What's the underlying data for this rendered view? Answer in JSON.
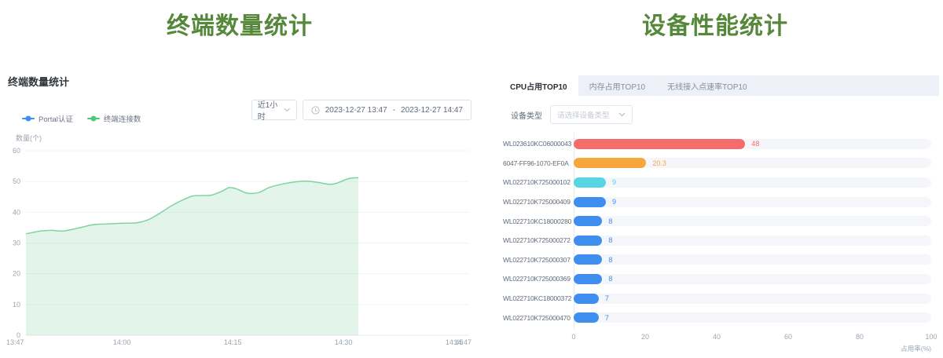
{
  "colors": {
    "title_green": "#55883a",
    "portal_blue": "#3e8ef0",
    "terminal_green": "#7fd39e",
    "bar_red": "#f56c6c",
    "bar_orange": "#f7a63c",
    "bar_cyan": "#55d6e2",
    "bar_blue": "#3e8ef0"
  },
  "left": {
    "big_title": "终端数量统计",
    "panel_title": "终端数量统计",
    "range_select": {
      "value": "近1小时"
    },
    "date_range": {
      "start": "2023-12-27 13:47",
      "separator": "-",
      "end": "2023-12-27 14:47"
    },
    "legend": [
      {
        "label": "Portal认证",
        "color": "#3e8ef0"
      },
      {
        "label": "终端连接数",
        "color": "#4ec977"
      }
    ]
  },
  "right": {
    "big_title": "设备性能统计",
    "tabs": [
      {
        "label": "CPU占用TOP10",
        "active": true
      },
      {
        "label": "内存占用TOP10",
        "active": false
      },
      {
        "label": "无线接入点速率TOP10",
        "active": false
      }
    ],
    "filter": {
      "label": "设备类型",
      "placeholder": "请选择设备类型"
    }
  },
  "chart_data": [
    {
      "type": "area",
      "title": "终端数量统计",
      "ylabel": "数量(个)",
      "ylim": [
        0,
        60
      ],
      "y_ticks": [
        0,
        10,
        20,
        30,
        40,
        50,
        60
      ],
      "x_ticks": [
        "13:47",
        "14:00",
        "14:15",
        "14:30",
        "14:45",
        "14:47"
      ],
      "x_tick_minutes": [
        0,
        13,
        28,
        43,
        58,
        60
      ],
      "x_range_minutes": [
        0,
        60
      ],
      "grid": true,
      "legend_position": "top-left",
      "series": [
        {
          "name": "Portal认证",
          "color": "#3e8ef0",
          "points": []
        },
        {
          "name": "终端连接数",
          "color": "#7fd39e",
          "fill": "rgba(127,211,158,0.22)",
          "points": [
            [
              0,
              33
            ],
            [
              2,
              33.9
            ],
            [
              3.5,
              34.1
            ],
            [
              5,
              33.9
            ],
            [
              7,
              34.8
            ],
            [
              9,
              35.9
            ],
            [
              11,
              36.2
            ],
            [
              13,
              36.4
            ],
            [
              15,
              36.6
            ],
            [
              16.5,
              37.5
            ],
            [
              18,
              39.5
            ],
            [
              20,
              42.5
            ],
            [
              22,
              44.8
            ],
            [
              23,
              45.4
            ],
            [
              25,
              45.5
            ],
            [
              26.5,
              46.8
            ],
            [
              27.5,
              48
            ],
            [
              28.5,
              47.6
            ],
            [
              30,
              46.2
            ],
            [
              31.5,
              46.4
            ],
            [
              33,
              48.1
            ],
            [
              35,
              49.3
            ],
            [
              36.5,
              49.9
            ],
            [
              38,
              50.1
            ],
            [
              39.5,
              49.7
            ],
            [
              41,
              49.1
            ],
            [
              42,
              49.4
            ],
            [
              43.5,
              50.8
            ],
            [
              44.5,
              51.2
            ],
            [
              45,
              51.2
            ]
          ]
        }
      ]
    },
    {
      "type": "bar",
      "orientation": "horizontal",
      "title": "CPU占用TOP10",
      "xlabel": "占用率(%)",
      "xlim": [
        0,
        100
      ],
      "x_ticks": [
        0,
        20,
        40,
        60,
        80,
        100
      ],
      "categories": [
        "WL023610KC06000043",
        "6047-FF96-1070-EF0A",
        "WL022710K725000102",
        "WL022710K725000409",
        "WL022710KC18000280",
        "WL022710K725000272",
        "WL022710K725000307",
        "WL022710K725000369",
        "WL022710KC18000372",
        "WL022710K725000470"
      ],
      "values": [
        48,
        20.3,
        9,
        9,
        8,
        8,
        8,
        8,
        7,
        7
      ],
      "bar_colors": [
        "#f56c6c",
        "#f7a63c",
        "#55d6e2",
        "#3e8ef0",
        "#3e8ef0",
        "#3e8ef0",
        "#3e8ef0",
        "#3e8ef0",
        "#3e8ef0",
        "#3e8ef0"
      ]
    }
  ]
}
